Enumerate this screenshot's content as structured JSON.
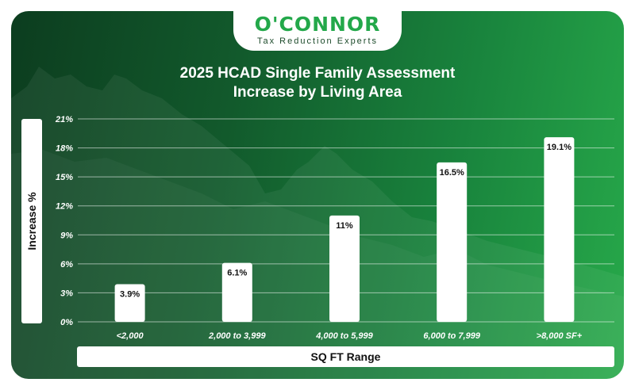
{
  "logo": {
    "name": "O'CONNOR",
    "tagline": "Tax Reduction Experts"
  },
  "colors": {
    "accent": "#23a84a",
    "bg_dark": "#0c3d1f",
    "bg_light": "#27a94a",
    "bar": "#ffffff"
  },
  "chart_data": {
    "type": "bar",
    "title_line1": "2025 HCAD Single Family Assessment",
    "title_line2": "Increase by Living Area",
    "xlabel": "SQ FT Range",
    "ylabel": "Increase %",
    "categories": [
      "<2,000",
      "2,000 to 3,999",
      "4,000 to 5,999",
      "6,000 to 7,999",
      ">8,000 SF+"
    ],
    "values": [
      3.9,
      6.1,
      11,
      16.5,
      19.1
    ],
    "value_labels": [
      "3.9%",
      "6.1%",
      "11%",
      "16.5%",
      "19.1%"
    ],
    "yticks": [
      "0%",
      "3%",
      "6%",
      "9%",
      "12%",
      "15%",
      "18%",
      "21%"
    ],
    "ylim": [
      0,
      21
    ],
    "grid": true,
    "legend": false
  }
}
